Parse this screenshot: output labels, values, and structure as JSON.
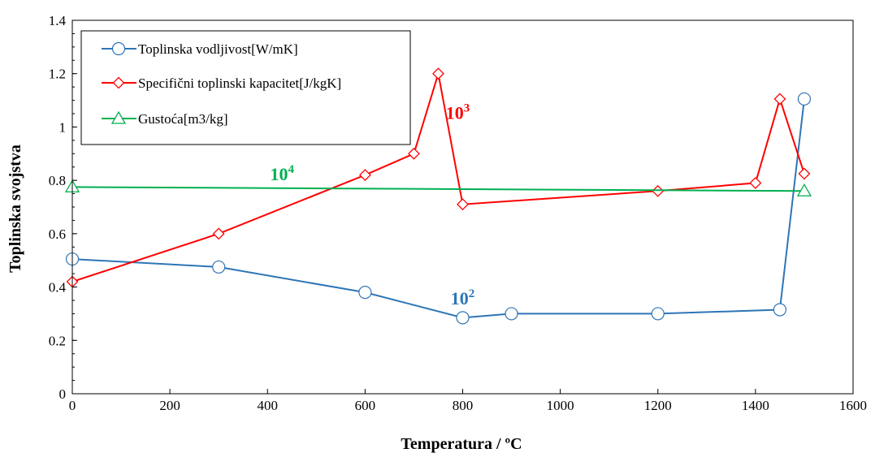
{
  "chart_data": {
    "type": "line",
    "xlabel": "Temperatura / ºC",
    "ylabel": "Toplinska svojstva",
    "xlim": [
      0,
      1600
    ],
    "ylim": [
      0,
      1.4
    ],
    "x_ticks": [
      "0",
      "200",
      "400",
      "600",
      "800",
      "1000",
      "1200",
      "1400",
      "1600"
    ],
    "y_ticks": [
      "0",
      "0.2",
      "0.4",
      "0.6",
      "0.8",
      "1",
      "1.2",
      "1.4"
    ],
    "grid": false,
    "legend_position": "top-left",
    "series": [
      {
        "name": "Toplinska vodljivost[W/mK]",
        "color": "#2E75B6",
        "marker": "circle",
        "x": [
          0,
          300,
          600,
          800,
          900,
          1200,
          1450,
          1500
        ],
        "y": [
          0.505,
          0.475,
          0.38,
          0.285,
          0.3,
          0.3,
          0.315,
          1.105
        ]
      },
      {
        "name": "Specifični toplinski kapacitet[J/kgK]",
        "color": "#FF0000",
        "marker": "diamond",
        "x": [
          0,
          300,
          600,
          700,
          750,
          800,
          1200,
          1400,
          1450,
          1500
        ],
        "y": [
          0.42,
          0.6,
          0.82,
          0.9,
          1.2,
          0.71,
          0.76,
          0.79,
          1.105,
          0.825
        ]
      },
      {
        "name": "Gustoća[m3/kg]",
        "color": "#00B050",
        "marker": "triangle",
        "x": [
          0,
          1500
        ],
        "y": [
          0.775,
          0.76
        ]
      }
    ],
    "annotations": [
      {
        "base": "10",
        "exp": "2",
        "color": "#2E75B6",
        "x": 800,
        "y": 0.335
      },
      {
        "base": "10",
        "exp": "3",
        "color": "#FF0000",
        "x": 790,
        "y": 1.03
      },
      {
        "base": "10",
        "exp": "4",
        "color": "#00B050",
        "x": 430,
        "y": 0.8
      }
    ]
  }
}
